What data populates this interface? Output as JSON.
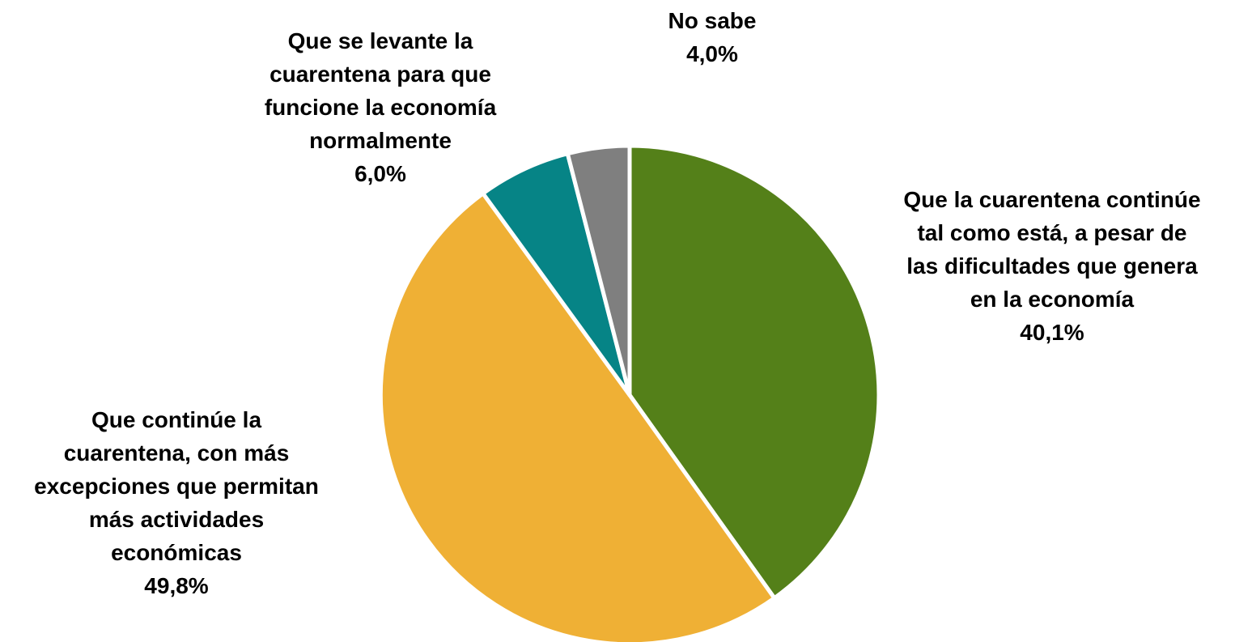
{
  "chart_data": {
    "type": "pie",
    "title": "",
    "slices": [
      {
        "label_lines": [
          "Que la cuarentena continúe",
          "tal como está, a pesar de",
          "las dificultades que genera",
          "en la economía"
        ],
        "value": 40.1,
        "value_label": "40,1%",
        "color": "#548019"
      },
      {
        "label_lines": [
          "Que continúe la",
          "cuarentena, con más",
          "excepciones que permitan",
          "más actividades",
          "económicas"
        ],
        "value": 49.8,
        "value_label": "49,8%",
        "color": "#EFB035"
      },
      {
        "label_lines": [
          "Que se levante la",
          "cuarentena para que",
          "funcione la economía",
          "normalmente"
        ],
        "value": 6.0,
        "value_label": "6,0%",
        "color": "#068486"
      },
      {
        "label_lines": [
          "No sabe"
        ],
        "value": 4.0,
        "value_label": "4,0%",
        "color": "#7F7F7F"
      }
    ]
  }
}
